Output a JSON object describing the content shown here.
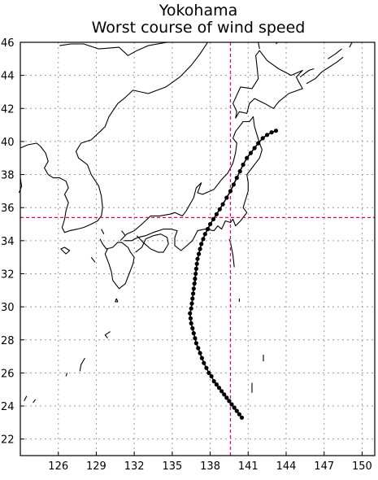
{
  "title": "Yokohama",
  "subtitle": "Worst course of wind speed",
  "chart_data": {
    "type": "map",
    "projection": "equirectangular",
    "lon_range": [
      123,
      151
    ],
    "lat_range": [
      21,
      46
    ],
    "lon_ticks": [
      126,
      129,
      132,
      135,
      138,
      141,
      144,
      147,
      150
    ],
    "lat_ticks": [
      22,
      24,
      26,
      28,
      30,
      32,
      34,
      36,
      38,
      40,
      42,
      44,
      46
    ],
    "grid": true,
    "grid_style": "dotted",
    "reference_point": {
      "lon": 139.6,
      "lat": 35.4,
      "color": "#e0007a"
    },
    "track": [
      {
        "lon": 140.5,
        "lat": 23.3
      },
      {
        "lon": 140.3,
        "lat": 23.5
      },
      {
        "lon": 140.1,
        "lat": 23.7
      },
      {
        "lon": 139.9,
        "lat": 23.9
      },
      {
        "lon": 139.7,
        "lat": 24.1
      },
      {
        "lon": 139.5,
        "lat": 24.3
      },
      {
        "lon": 139.3,
        "lat": 24.5
      },
      {
        "lon": 139.1,
        "lat": 24.7
      },
      {
        "lon": 138.9,
        "lat": 24.9
      },
      {
        "lon": 138.7,
        "lat": 25.1
      },
      {
        "lon": 138.5,
        "lat": 25.3
      },
      {
        "lon": 138.3,
        "lat": 25.5
      },
      {
        "lon": 138.1,
        "lat": 25.8
      },
      {
        "lon": 137.9,
        "lat": 26.0
      },
      {
        "lon": 137.7,
        "lat": 26.3
      },
      {
        "lon": 137.5,
        "lat": 26.6
      },
      {
        "lon": 137.35,
        "lat": 26.9
      },
      {
        "lon": 137.2,
        "lat": 27.2
      },
      {
        "lon": 137.05,
        "lat": 27.5
      },
      {
        "lon": 136.9,
        "lat": 27.8
      },
      {
        "lon": 136.8,
        "lat": 28.1
      },
      {
        "lon": 136.7,
        "lat": 28.4
      },
      {
        "lon": 136.6,
        "lat": 28.7
      },
      {
        "lon": 136.5,
        "lat": 29.0
      },
      {
        "lon": 136.45,
        "lat": 29.3
      },
      {
        "lon": 136.4,
        "lat": 29.6
      },
      {
        "lon": 136.5,
        "lat": 29.9
      },
      {
        "lon": 136.55,
        "lat": 30.2
      },
      {
        "lon": 136.6,
        "lat": 30.5
      },
      {
        "lon": 136.65,
        "lat": 30.8
      },
      {
        "lon": 136.7,
        "lat": 31.1
      },
      {
        "lon": 136.75,
        "lat": 31.4
      },
      {
        "lon": 136.8,
        "lat": 31.7
      },
      {
        "lon": 136.85,
        "lat": 32.0
      },
      {
        "lon": 136.9,
        "lat": 32.3
      },
      {
        "lon": 136.95,
        "lat": 32.6
      },
      {
        "lon": 137.0,
        "lat": 32.9
      },
      {
        "lon": 137.1,
        "lat": 33.2
      },
      {
        "lon": 137.2,
        "lat": 33.5
      },
      {
        "lon": 137.3,
        "lat": 33.8
      },
      {
        "lon": 137.45,
        "lat": 34.1
      },
      {
        "lon": 137.6,
        "lat": 34.4
      },
      {
        "lon": 137.8,
        "lat": 34.7
      },
      {
        "lon": 138.0,
        "lat": 35.0
      },
      {
        "lon": 138.25,
        "lat": 35.3
      },
      {
        "lon": 138.5,
        "lat": 35.6
      },
      {
        "lon": 138.75,
        "lat": 35.9
      },
      {
        "lon": 139.0,
        "lat": 36.2
      },
      {
        "lon": 139.3,
        "lat": 36.6
      },
      {
        "lon": 139.6,
        "lat": 37.0
      },
      {
        "lon": 139.85,
        "lat": 37.4
      },
      {
        "lon": 140.1,
        "lat": 37.8
      },
      {
        "lon": 140.35,
        "lat": 38.2
      },
      {
        "lon": 140.6,
        "lat": 38.6
      },
      {
        "lon": 140.9,
        "lat": 39.0
      },
      {
        "lon": 141.2,
        "lat": 39.3
      },
      {
        "lon": 141.5,
        "lat": 39.6
      },
      {
        "lon": 141.8,
        "lat": 39.9
      },
      {
        "lon": 142.15,
        "lat": 40.2
      },
      {
        "lon": 142.5,
        "lat": 40.4
      },
      {
        "lon": 142.85,
        "lat": 40.55
      },
      {
        "lon": 143.2,
        "lat": 40.65
      }
    ],
    "coastlines": [
      [
        [
          126.1,
          45.8
        ],
        [
          127.0,
          45.9
        ],
        [
          128.0,
          45.9
        ],
        [
          129.2,
          45.6
        ],
        [
          130.8,
          45.7
        ],
        [
          131.5,
          45.2
        ],
        [
          132.2,
          45.5
        ],
        [
          133.1,
          45.8
        ],
        [
          134.6,
          46.0
        ],
        [
          136.2,
          46.0
        ],
        [
          137.8,
          46.0
        ]
      ],
      [
        [
          137.8,
          46.0
        ],
        [
          137.2,
          45.3
        ],
        [
          136.5,
          44.6
        ],
        [
          135.6,
          43.9
        ],
        [
          134.5,
          43.3
        ],
        [
          133.1,
          42.9
        ],
        [
          131.9,
          43.1
        ],
        [
          131.2,
          42.6
        ],
        [
          130.7,
          42.3
        ],
        [
          130.0,
          41.5
        ],
        [
          129.7,
          40.9
        ],
        [
          129.3,
          40.6
        ],
        [
          128.6,
          40.1
        ],
        [
          127.8,
          39.9
        ],
        [
          127.4,
          39.4
        ],
        [
          127.6,
          39.0
        ],
        [
          128.3,
          38.6
        ],
        [
          128.6,
          38.0
        ],
        [
          129.2,
          37.3
        ],
        [
          129.4,
          36.7
        ],
        [
          129.5,
          36.0
        ],
        [
          129.4,
          35.5
        ],
        [
          129.1,
          35.2
        ],
        [
          128.6,
          35.0
        ],
        [
          128.0,
          34.8
        ],
        [
          127.5,
          34.7
        ],
        [
          126.9,
          34.6
        ],
        [
          126.5,
          34.5
        ],
        [
          126.3,
          34.8
        ],
        [
          126.5,
          35.3
        ],
        [
          126.6,
          35.8
        ],
        [
          126.8,
          36.3
        ],
        [
          126.5,
          36.8
        ],
        [
          126.8,
          37.2
        ],
        [
          126.6,
          37.6
        ],
        [
          126.1,
          37.8
        ],
        [
          125.6,
          37.8
        ],
        [
          125.2,
          38.0
        ],
        [
          124.9,
          38.4
        ],
        [
          125.2,
          38.8
        ],
        [
          125.0,
          39.3
        ],
        [
          124.6,
          39.7
        ],
        [
          124.3,
          39.9
        ],
        [
          123.6,
          39.8
        ],
        [
          123.0,
          39.6
        ]
      ],
      [
        [
          123.0,
          37.8
        ],
        [
          123.1,
          37.3
        ],
        [
          122.9,
          36.9
        ]
      ],
      [
        [
          129.3,
          34.1
        ],
        [
          129.5,
          33.8
        ],
        [
          129.8,
          33.5
        ],
        [
          130.3,
          33.6
        ],
        [
          130.7,
          33.9
        ],
        [
          131.0,
          33.9
        ],
        [
          131.5,
          33.6
        ],
        [
          131.7,
          33.3
        ],
        [
          132.0,
          33.0
        ],
        [
          131.9,
          32.6
        ],
        [
          131.6,
          32.0
        ],
        [
          131.3,
          31.4
        ],
        [
          130.8,
          31.1
        ],
        [
          130.6,
          31.3
        ],
        [
          130.3,
          31.6
        ],
        [
          130.2,
          32.1
        ],
        [
          130.0,
          32.6
        ],
        [
          129.8,
          33.0
        ],
        [
          129.7,
          33.2
        ],
        [
          129.9,
          33.5
        ]
      ],
      [
        [
          132.2,
          34.3
        ],
        [
          132.7,
          33.9
        ],
        [
          133.3,
          33.5
        ],
        [
          133.9,
          33.3
        ],
        [
          134.3,
          33.3
        ],
        [
          134.7,
          33.8
        ],
        [
          134.6,
          34.2
        ],
        [
          134.1,
          34.4
        ],
        [
          133.5,
          34.3
        ],
        [
          132.9,
          34.1
        ],
        [
          132.6,
          33.6
        ],
        [
          132.1,
          33.3
        ]
      ],
      [
        [
          130.9,
          34.0
        ],
        [
          131.4,
          34.4
        ],
        [
          132.0,
          34.6
        ],
        [
          132.6,
          35.0
        ],
        [
          133.3,
          35.5
        ],
        [
          134.0,
          35.5
        ],
        [
          134.8,
          35.6
        ],
        [
          135.2,
          35.7
        ],
        [
          135.8,
          35.5
        ],
        [
          136.1,
          35.8
        ],
        [
          136.7,
          36.6
        ],
        [
          136.9,
          37.2
        ],
        [
          137.3,
          37.5
        ],
        [
          137.0,
          36.9
        ],
        [
          137.4,
          36.8
        ],
        [
          138.3,
          37.1
        ],
        [
          138.9,
          37.7
        ],
        [
          139.4,
          38.1
        ],
        [
          139.8,
          38.7
        ],
        [
          140.0,
          39.3
        ],
        [
          140.1,
          39.9
        ],
        [
          139.8,
          40.2
        ],
        [
          140.0,
          40.6
        ],
        [
          140.3,
          40.9
        ],
        [
          140.6,
          41.2
        ],
        [
          141.1,
          41.2
        ],
        [
          141.4,
          41.5
        ],
        [
          141.5,
          40.9
        ],
        [
          141.7,
          40.4
        ],
        [
          141.9,
          39.9
        ],
        [
          142.1,
          39.5
        ],
        [
          141.9,
          39.0
        ],
        [
          141.6,
          38.7
        ],
        [
          141.2,
          38.3
        ],
        [
          140.9,
          38.0
        ],
        [
          141.0,
          37.5
        ],
        [
          141.0,
          37.0
        ],
        [
          140.8,
          36.5
        ],
        [
          140.6,
          36.0
        ],
        [
          140.9,
          35.7
        ],
        [
          140.4,
          35.2
        ],
        [
          140.0,
          34.9
        ],
        [
          139.8,
          35.3
        ],
        [
          139.6,
          35.1
        ],
        [
          139.2,
          35.2
        ],
        [
          138.9,
          34.7
        ],
        [
          138.6,
          34.9
        ],
        [
          138.3,
          34.6
        ],
        [
          137.6,
          34.7
        ],
        [
          137.0,
          34.6
        ],
        [
          136.8,
          34.3
        ],
        [
          136.6,
          34.0
        ],
        [
          136.0,
          33.6
        ],
        [
          135.7,
          33.4
        ],
        [
          135.2,
          33.7
        ],
        [
          135.2,
          34.2
        ],
        [
          135.4,
          34.6
        ],
        [
          134.9,
          34.7
        ],
        [
          134.3,
          34.7
        ],
        [
          133.5,
          34.5
        ],
        [
          132.9,
          34.3
        ],
        [
          132.3,
          34.2
        ],
        [
          131.8,
          34.0
        ],
        [
          131.2,
          34.0
        ]
      ],
      [
        [
          140.0,
          41.4
        ],
        [
          140.3,
          41.8
        ],
        [
          140.9,
          41.7
        ],
        [
          141.1,
          42.3
        ],
        [
          141.5,
          42.6
        ],
        [
          142.3,
          42.3
        ],
        [
          143.0,
          42.0
        ],
        [
          143.4,
          42.4
        ],
        [
          144.2,
          42.9
        ],
        [
          145.3,
          43.2
        ],
        [
          145.0,
          43.6
        ],
        [
          144.8,
          43.9
        ],
        [
          145.3,
          44.3
        ],
        [
          144.4,
          44.0
        ],
        [
          143.4,
          44.4
        ],
        [
          142.5,
          44.9
        ],
        [
          141.9,
          45.5
        ],
        [
          141.6,
          45.2
        ],
        [
          141.7,
          44.5
        ],
        [
          141.8,
          43.8
        ],
        [
          141.3,
          43.2
        ],
        [
          140.4,
          43.3
        ],
        [
          140.1,
          42.8
        ],
        [
          139.8,
          42.3
        ],
        [
          140.1,
          41.8
        ],
        [
          140.0,
          41.4
        ]
      ],
      [
        [
          141.9,
          45.6
        ],
        [
          141.8,
          46.0
        ]
      ],
      [
        [
          143.3,
          46.0
        ],
        [
          143.2,
          45.9
        ]
      ],
      [
        [
          145.6,
          43.5
        ],
        [
          146.3,
          43.8
        ],
        [
          146.8,
          44.2
        ],
        [
          147.4,
          44.5
        ],
        [
          148.0,
          44.8
        ],
        [
          148.5,
          45.1
        ]
      ],
      [
        [
          147.3,
          45.0
        ],
        [
          147.9,
          45.3
        ],
        [
          148.4,
          45.6
        ]
      ],
      [
        [
          149.2,
          46.0
        ],
        [
          149.0,
          45.7
        ]
      ],
      [
        [
          145.1,
          43.9
        ],
        [
          145.8,
          44.3
        ],
        [
          146.2,
          44.4
        ]
      ],
      [
        [
          131.0,
          34.6
        ],
        [
          131.3,
          34.3
        ]
      ],
      [
        [
          128.6,
          33.0
        ],
        [
          128.9,
          32.7
        ]
      ],
      [
        [
          129.6,
          34.4
        ],
        [
          129.4,
          34.7
        ]
      ],
      [
        [
          126.2,
          33.5
        ],
        [
          126.6,
          33.2
        ],
        [
          126.9,
          33.4
        ],
        [
          126.5,
          33.6
        ],
        [
          126.2,
          33.5
        ]
      ],
      [
        [
          130.6,
          30.5
        ],
        [
          130.5,
          30.3
        ],
        [
          130.7,
          30.3
        ],
        [
          130.6,
          30.5
        ]
      ],
      [
        [
          130.1,
          28.5
        ],
        [
          129.7,
          28.3
        ],
        [
          129.9,
          28.1
        ]
      ],
      [
        [
          128.1,
          26.9
        ],
        [
          127.8,
          26.5
        ],
        [
          127.7,
          26.1
        ]
      ],
      [
        [
          126.7,
          26.0
        ],
        [
          126.6,
          25.8
        ]
      ],
      [
        [
          124.2,
          24.4
        ],
        [
          124.0,
          24.2
        ]
      ],
      [
        [
          123.5,
          24.6
        ],
        [
          123.3,
          24.3
        ]
      ],
      [
        [
          139.5,
          34.1
        ],
        [
          139.6,
          33.9
        ],
        [
          139.8,
          33.1
        ],
        [
          139.9,
          32.4
        ]
      ],
      [
        [
          142.2,
          27.1
        ],
        [
          142.2,
          26.7
        ]
      ],
      [
        [
          141.3,
          25.4
        ],
        [
          141.3,
          24.8
        ]
      ],
      [
        [
          136.8,
          31.6
        ],
        [
          136.9,
          31.4
        ]
      ],
      [
        [
          140.3,
          30.5
        ],
        [
          140.3,
          30.3
        ]
      ]
    ]
  }
}
